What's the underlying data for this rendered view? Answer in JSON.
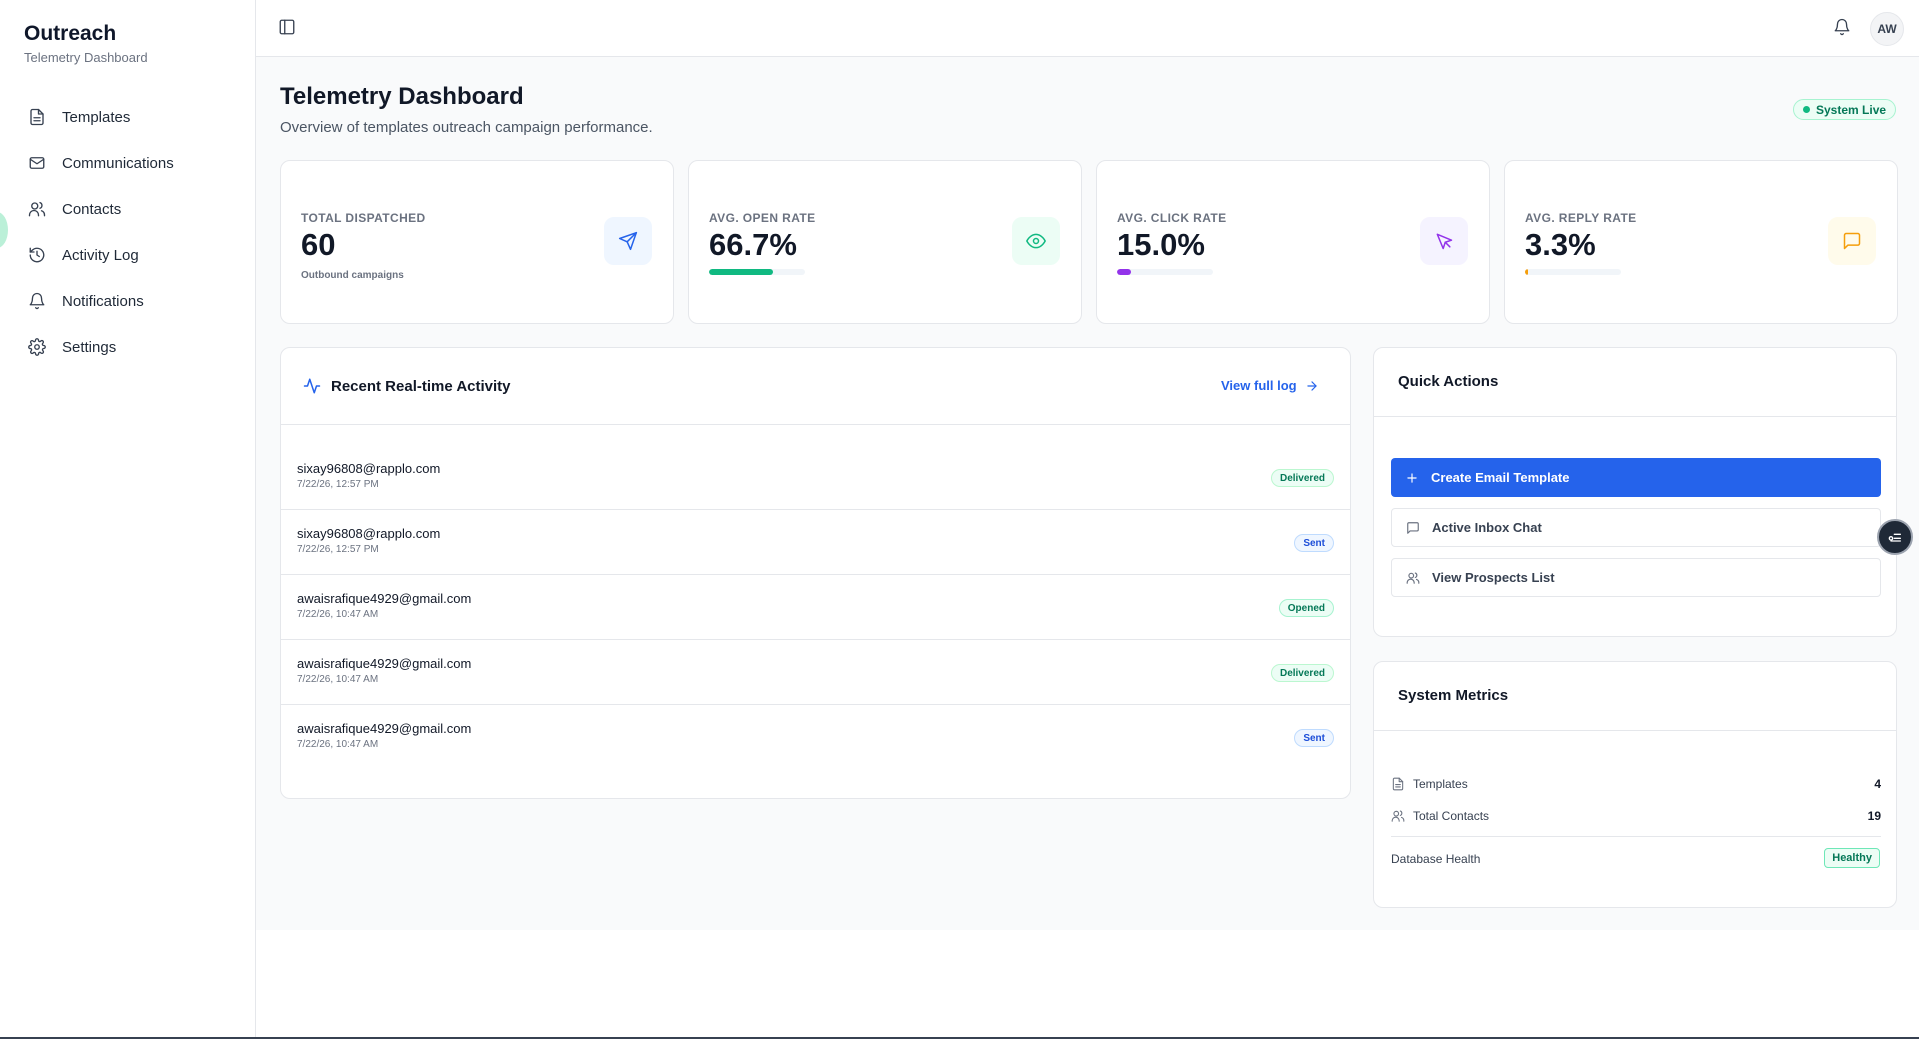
{
  "sidebar": {
    "brand_title": "Outreach",
    "brand_subtitle": "Telemetry Dashboard",
    "items": [
      {
        "label": "Templates",
        "icon": "file-text-icon"
      },
      {
        "label": "Communications",
        "icon": "mail-icon"
      },
      {
        "label": "Contacts",
        "icon": "users-icon"
      },
      {
        "label": "Activity Log",
        "icon": "history-icon"
      },
      {
        "label": "Notifications",
        "icon": "bell-icon"
      },
      {
        "label": "Settings",
        "icon": "gear-icon"
      }
    ]
  },
  "header": {
    "avatar_initials": "AW"
  },
  "page": {
    "title": "Telemetry Dashboard",
    "subtitle": "Overview of templates outreach campaign performance.",
    "status_badge": "System Live"
  },
  "stats": [
    {
      "label": "TOTAL DISPATCHED",
      "value": "60",
      "note": "Outbound campaigns",
      "icon": "send-icon",
      "color": "#2563eb",
      "bg": "#eff6ff"
    },
    {
      "label": "AVG. OPEN RATE",
      "value": "66.7%",
      "progress": 0.667,
      "icon": "eye-icon",
      "color": "#10b981",
      "bg": "#ecfdf5"
    },
    {
      "label": "AVG. CLICK RATE",
      "value": "15.0%",
      "progress": 0.15,
      "icon": "cursor-icon",
      "color": "#9333ea",
      "bg": "#f5f3ff"
    },
    {
      "label": "AVG. REPLY RATE",
      "value": "3.3%",
      "progress": 0.033,
      "icon": "message-square-icon",
      "color": "#f59e0b",
      "bg": "#fffbeb"
    }
  ],
  "activity": {
    "title": "Recent Real-time Activity",
    "view_link": "View full log",
    "rows": [
      {
        "email": "sixay96808@rapplo.com",
        "time": "7/22/26, 12:57 PM",
        "status": "Delivered"
      },
      {
        "email": "sixay96808@rapplo.com",
        "time": "7/22/26, 12:57 PM",
        "status": "Sent"
      },
      {
        "email": "awaisrafique4929@gmail.com",
        "time": "7/22/26, 10:47 AM",
        "status": "Opened"
      },
      {
        "email": "awaisrafique4929@gmail.com",
        "time": "7/22/26, 10:47 AM",
        "status": "Delivered"
      },
      {
        "email": "awaisrafique4929@gmail.com",
        "time": "7/22/26, 10:47 AM",
        "status": "Sent"
      }
    ]
  },
  "quick_actions": {
    "title": "Quick Actions",
    "create_template": "Create Email Template",
    "inbox_chat": "Active Inbox Chat",
    "prospects": "View Prospects List"
  },
  "system_metrics": {
    "title": "System Metrics",
    "templates_label": "Templates",
    "templates_value": "4",
    "contacts_label": "Total Contacts",
    "contacts_value": "19",
    "db_label": "Database Health",
    "db_status": "Healthy"
  }
}
